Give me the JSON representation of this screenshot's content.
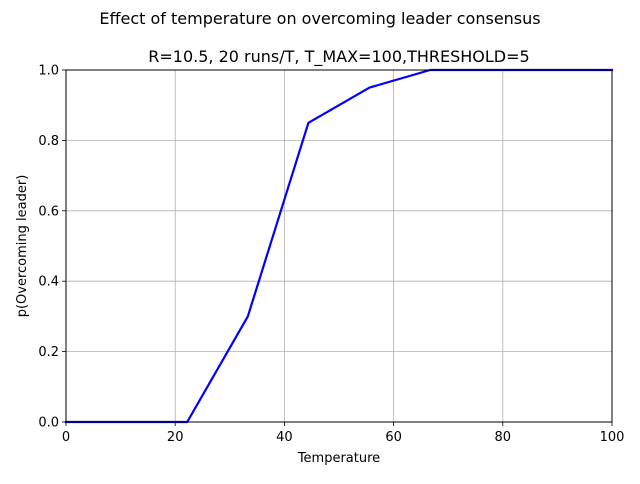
{
  "figure": {
    "suptitle": "Effect of temperature on overcoming leader consensus"
  },
  "chart_data": {
    "type": "line",
    "title": "R=10.5, 20 runs/T, T_MAX=100,THRESHOLD=5",
    "xlabel": "Temperature",
    "ylabel": "p(Overcoming leader)",
    "xlim": [
      0,
      100
    ],
    "ylim": [
      0,
      1
    ],
    "xticks": [
      0,
      20,
      40,
      60,
      80,
      100
    ],
    "xtick_labels": [
      "0",
      "20",
      "40",
      "60",
      "80",
      "100"
    ],
    "yticks": [
      0,
      0.2,
      0.4,
      0.6,
      0.8,
      1.0
    ],
    "ytick_labels": [
      "0.0",
      "0.2",
      "0.4",
      "0.6",
      "0.8",
      "1.0"
    ],
    "grid": true,
    "legend": false,
    "series": [
      {
        "color": "#0000ff",
        "x": [
          0,
          11.1,
          22.2,
          33.3,
          44.4,
          55.6,
          66.7,
          77.8,
          88.9,
          100
        ],
        "y": [
          0.0,
          0.0,
          0.0,
          0.3,
          0.85,
          0.95,
          1.0,
          1.0,
          1.0,
          1.0
        ]
      }
    ]
  }
}
